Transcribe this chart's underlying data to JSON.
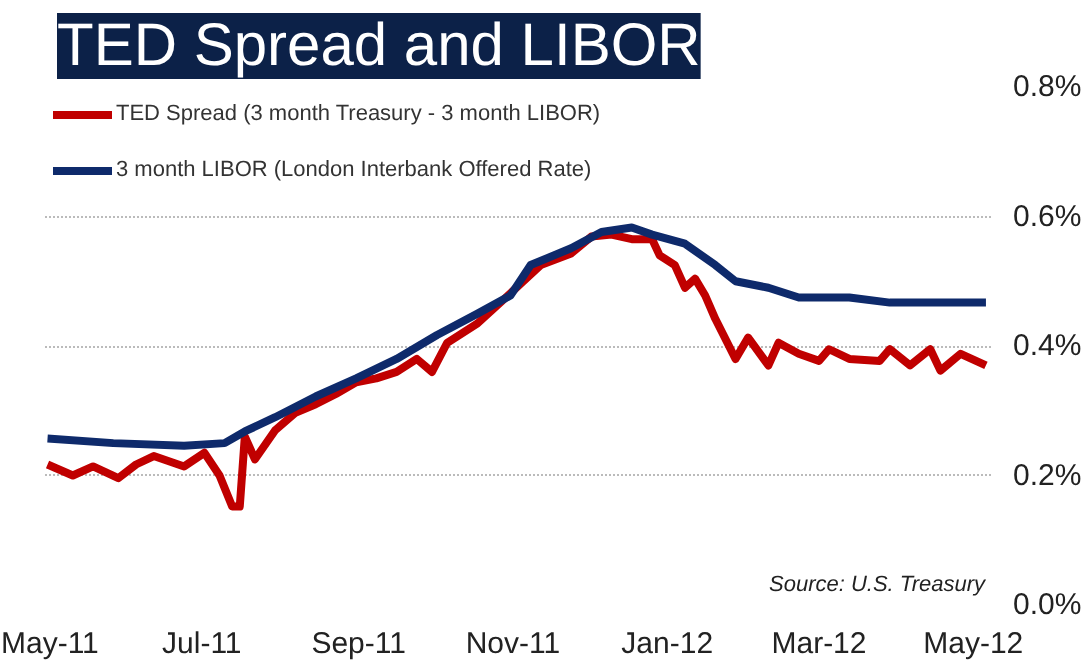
{
  "chart_data": {
    "type": "line",
    "title": "TED Spread and LIBOR",
    "x": [
      "2011-05-01",
      "2011-05-11",
      "2011-05-19",
      "2011-05-29",
      "2011-06-05",
      "2011-06-12",
      "2011-06-24",
      "2011-07-02",
      "2011-07-08",
      "2011-07-13",
      "2011-07-16",
      "2011-07-18",
      "2011-07-22",
      "2011-07-30",
      "2011-08-07",
      "2011-08-15",
      "2011-08-23",
      "2011-08-31",
      "2011-09-08",
      "2011-09-16",
      "2011-09-24",
      "2011-09-30",
      "2011-10-06",
      "2011-10-18",
      "2011-10-27",
      "2011-11-04",
      "2011-11-12",
      "2011-11-24",
      "2011-12-02",
      "2011-12-10",
      "2011-12-18",
      "2011-12-26",
      "2011-12-29",
      "2012-01-04",
      "2012-01-08",
      "2012-01-12",
      "2012-01-16",
      "2012-01-20",
      "2012-01-28",
      "2012-02-02",
      "2012-02-10",
      "2012-02-14",
      "2012-02-22",
      "2012-03-01",
      "2012-03-05",
      "2012-03-13",
      "2012-03-25",
      "2012-03-29",
      "2012-04-06",
      "2012-04-14",
      "2012-04-18",
      "2012-04-26",
      "2012-05-06"
    ],
    "series": [
      {
        "name": "TED Spread (3 month Treasury - 3 month LIBOR)",
        "color": "#c00000",
        "values": [
          0.217,
          0.2,
          0.214,
          0.196,
          0.217,
          0.23,
          0.214,
          0.235,
          0.2,
          0.152,
          0.152,
          0.26,
          0.225,
          0.27,
          0.297,
          0.31,
          0.326,
          0.344,
          0.35,
          0.36,
          0.38,
          0.36,
          0.405,
          0.435,
          0.467,
          0.496,
          0.525,
          0.543,
          0.569,
          0.572,
          0.565,
          0.565,
          0.54,
          0.525,
          0.49,
          0.504,
          0.478,
          0.442,
          0.38,
          0.413,
          0.37,
          0.405,
          0.388,
          0.377,
          0.395,
          0.38,
          0.377,
          0.395,
          0.37,
          0.395,
          0.362,
          0.388,
          0.37
        ]
      },
      {
        "name": "3 month LIBOR (London Interbank Offered Rate)",
        "color": "#0e2a6b",
        "x": [
          "2011-05-01",
          "2011-05-27",
          "2011-06-24",
          "2011-07-10",
          "2011-07-18",
          "2011-07-30",
          "2011-08-15",
          "2011-08-31",
          "2011-09-16",
          "2011-10-02",
          "2011-10-18",
          "2011-10-31",
          "2011-11-08",
          "2011-11-24",
          "2011-12-06",
          "2011-12-18",
          "2011-12-26",
          "2012-01-08",
          "2012-01-20",
          "2012-01-28",
          "2012-02-10",
          "2012-02-22",
          "2012-03-13",
          "2012-03-29",
          "2012-05-06"
        ],
        "values": [
          0.257,
          0.25,
          0.246,
          0.25,
          0.268,
          0.29,
          0.322,
          0.35,
          0.38,
          0.417,
          0.45,
          0.478,
          0.525,
          0.551,
          0.576,
          0.583,
          0.572,
          0.558,
          0.525,
          0.5,
          0.49,
          0.475,
          0.475,
          0.467,
          0.467
        ]
      }
    ],
    "xlim": [
      "2011-04-30",
      "2012-05-08"
    ],
    "xticks": [
      {
        "value": "2011-05-01",
        "label": "May-11"
      },
      {
        "value": "2011-07-01",
        "label": "Jul-11"
      },
      {
        "value": "2011-09-01",
        "label": "Sep-11"
      },
      {
        "value": "2011-11-01",
        "label": "Nov-11"
      },
      {
        "value": "2012-01-01",
        "label": "Jan-12"
      },
      {
        "value": "2012-03-01",
        "label": "Mar-12"
      },
      {
        "value": "2012-05-01",
        "label": "May-12"
      }
    ],
    "ylim": [
      0,
      0.8
    ],
    "yticks": [
      {
        "value": 0,
        "label": "0.0%"
      },
      {
        "value": 0.2,
        "label": "0.2%"
      },
      {
        "value": 0.4,
        "label": "0.4%"
      },
      {
        "value": 0.6,
        "label": "0.6%"
      },
      {
        "value": 0.8,
        "label": "0.8%"
      }
    ],
    "grid": "y",
    "legend": "top left",
    "marker": "none",
    "line_style": "solid",
    "annotations": [
      "Source: U.S. Treasury"
    ]
  }
}
